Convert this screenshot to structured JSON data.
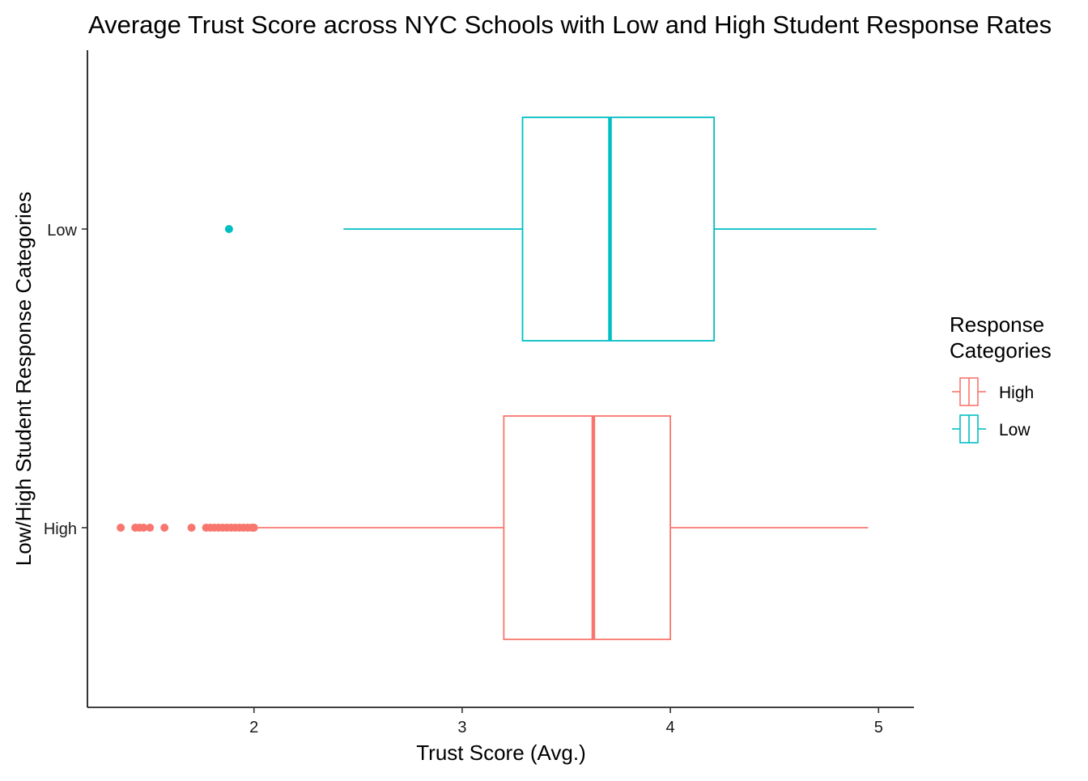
{
  "chart_data": {
    "type": "boxplot",
    "title": "Average Trust Score across NYC Schools with Low and High Student Response Rates",
    "xlabel": "Trust Score (Avg.)",
    "ylabel": "Low/High Student Response Categories",
    "xlim": [
      1.2,
      5.17
    ],
    "x_ticks": [
      2,
      3,
      4,
      5
    ],
    "categories": [
      "High",
      "Low"
    ],
    "grid": false,
    "legend": {
      "title": "Response\nCategories",
      "position": "right",
      "entries": [
        "High",
        "Low"
      ]
    },
    "series": [
      {
        "name": "High",
        "color": "#F8766D",
        "whisker_low": 2.02,
        "q1": 3.2,
        "median": 3.63,
        "q3": 4.0,
        "whisker_high": 4.95,
        "outliers": [
          1.36,
          1.43,
          1.45,
          1.47,
          1.5,
          1.57,
          1.7,
          1.77,
          1.79,
          1.81,
          1.83,
          1.85,
          1.87,
          1.89,
          1.91,
          1.93,
          1.95,
          1.97,
          1.99,
          2.0
        ]
      },
      {
        "name": "Low",
        "color": "#00BFC4",
        "whisker_low": 2.43,
        "q1": 3.29,
        "median": 3.71,
        "q3": 4.21,
        "whisker_high": 4.99,
        "outliers": [
          1.88
        ]
      }
    ]
  }
}
